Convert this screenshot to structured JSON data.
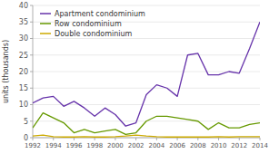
{
  "chart_data": {
    "type": "line",
    "ylabel": "units (thousands)",
    "x": [
      1992,
      1993,
      1994,
      1995,
      1996,
      1997,
      1998,
      1999,
      2000,
      2001,
      2002,
      2003,
      2004,
      2005,
      2006,
      2007,
      2008,
      2009,
      2010,
      2011,
      2012,
      2013,
      2014
    ],
    "series": [
      {
        "name": "Apartment condominium",
        "color": "#6633aa",
        "values": [
          10.5,
          12.0,
          12.5,
          9.5,
          11.0,
          9.0,
          6.5,
          9.0,
          7.0,
          3.5,
          4.5,
          13.0,
          16.0,
          15.0,
          12.5,
          25.0,
          25.5,
          19.0,
          19.0,
          20.0,
          19.5,
          27.0,
          35.0
        ]
      },
      {
        "name": "Row condominium",
        "color": "#669900",
        "values": [
          3.0,
          7.5,
          6.0,
          4.5,
          1.5,
          2.5,
          1.5,
          2.0,
          2.5,
          1.0,
          1.5,
          5.0,
          6.5,
          6.5,
          6.0,
          5.5,
          5.0,
          2.5,
          4.5,
          3.0,
          3.0,
          4.0,
          4.5
        ]
      },
      {
        "name": "Double condominium",
        "color": "#ccaa00",
        "values": [
          0.5,
          0.8,
          0.3,
          0.2,
          0.2,
          0.3,
          0.2,
          0.2,
          0.3,
          0.5,
          0.8,
          0.5,
          0.3,
          0.2,
          0.2,
          0.2,
          0.2,
          0.2,
          0.3,
          0.2,
          0.3,
          0.3,
          0.3
        ]
      }
    ],
    "xlim": [
      1992,
      2014
    ],
    "xticks": [
      1992,
      1994,
      1996,
      1998,
      2000,
      2002,
      2004,
      2006,
      2008,
      2010,
      2012,
      2014
    ],
    "ylim": [
      0,
      40
    ],
    "yticks": [
      0,
      5,
      10,
      15,
      20,
      25,
      30,
      35,
      40
    ],
    "grid": true,
    "legend": "upper left"
  }
}
